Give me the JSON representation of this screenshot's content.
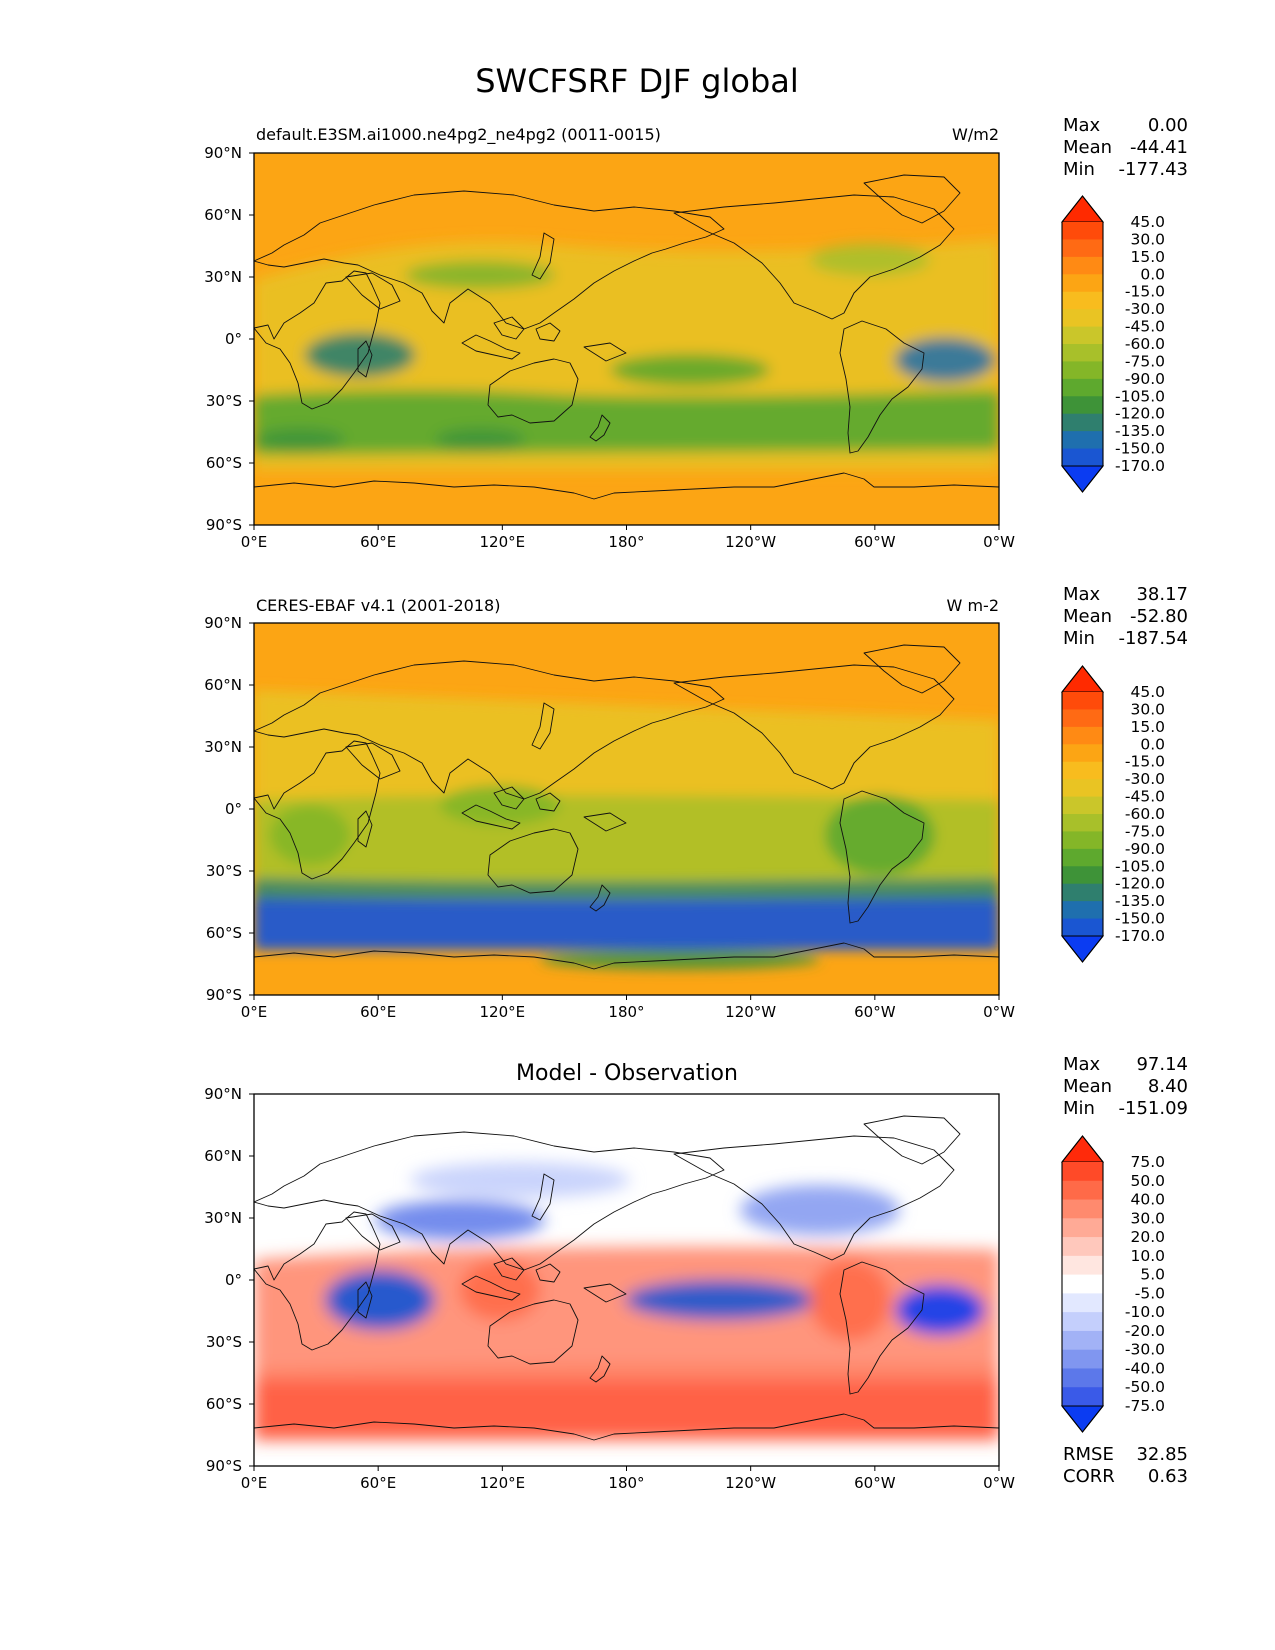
{
  "figure": {
    "title": "SWCFSRF DJF global"
  },
  "axes": {
    "lon_labels": [
      "0°E",
      "60°E",
      "120°E",
      "180°",
      "120°W",
      "60°W",
      "0°W"
    ],
    "lat_labels": [
      "90°N",
      "60°N",
      "30°N",
      "0°",
      "30°S",
      "60°S",
      "90°S"
    ]
  },
  "panels": [
    {
      "id": "model",
      "title_left": "default.E3SM.ai1000.ne4pg2_ne4pg2 (0011-0015)",
      "title_center": "",
      "units": "W/m2",
      "stats": [
        {
          "label": "Max",
          "value": "0.00"
        },
        {
          "label": "Mean",
          "value": "-44.41"
        },
        {
          "label": "Min",
          "value": "-177.43"
        }
      ],
      "colorbar": {
        "levels": [
          "45.0",
          "30.0",
          "15.0",
          "0.0",
          "-15.0",
          "-30.0",
          "-45.0",
          "-60.0",
          "-75.0",
          "-90.0",
          "-105.0",
          "-120.0",
          "-135.0",
          "-150.0",
          "-170.0"
        ],
        "colors": [
          "#ff2a00",
          "#ff4b0a",
          "#ff6a14",
          "#ff8a14",
          "#fca514",
          "#f8bc1e",
          "#e9c423",
          "#cac62a",
          "#a8c02a",
          "#84b628",
          "#5ea92e",
          "#3e9338",
          "#2f7f6e",
          "#1f6fae",
          "#1a56d2",
          "#0b3cf2"
        ],
        "extend": "both"
      },
      "overall_color": "#fca514"
    },
    {
      "id": "obs",
      "title_left": "CERES-EBAF v4.1 (2001-2018)",
      "title_center": "",
      "units": "W m-2",
      "stats": [
        {
          "label": "Max",
          "value": "38.17"
        },
        {
          "label": "Mean",
          "value": "-52.80"
        },
        {
          "label": "Min",
          "value": "-187.54"
        }
      ],
      "colorbar": {
        "levels": [
          "45.0",
          "30.0",
          "15.0",
          "0.0",
          "-15.0",
          "-30.0",
          "-45.0",
          "-60.0",
          "-75.0",
          "-90.0",
          "-105.0",
          "-120.0",
          "-135.0",
          "-150.0",
          "-170.0"
        ],
        "colors": [
          "#ff2a00",
          "#ff4b0a",
          "#ff6a14",
          "#ff8a14",
          "#fca514",
          "#f8bc1e",
          "#e9c423",
          "#cac62a",
          "#a8c02a",
          "#84b628",
          "#5ea92e",
          "#3e9338",
          "#2f7f6e",
          "#1f6fae",
          "#1a56d2",
          "#0b3cf2"
        ],
        "extend": "both"
      },
      "overall_color": "#fca514"
    },
    {
      "id": "diff",
      "title_left": "",
      "title_center": "Model - Observation",
      "units": "",
      "stats": [
        {
          "label": "Max",
          "value": "97.14"
        },
        {
          "label": "Mean",
          "value": "8.40"
        },
        {
          "label": "Min",
          "value": "-151.09"
        }
      ],
      "colorbar": {
        "levels": [
          "75.0",
          "50.0",
          "40.0",
          "30.0",
          "20.0",
          "10.0",
          "5.0",
          "-5.0",
          "-10.0",
          "-20.0",
          "-30.0",
          "-40.0",
          "-50.0",
          "-75.0"
        ],
        "colors": [
          "#ff2a0a",
          "#ff4a28",
          "#ff6a48",
          "#ff8a6e",
          "#ffaa96",
          "#ffc8bc",
          "#ffe6e0",
          "#ffffff",
          "#e2e8ff",
          "#c4cffc",
          "#a2b2f6",
          "#8096f0",
          "#5c78ea",
          "#3a5ae8",
          "#0b3cf2"
        ],
        "extend": "both"
      },
      "overall_color": "#ffffff",
      "metrics": [
        {
          "label": "RMSE",
          "value": "32.85"
        },
        {
          "label": "CORR",
          "value": "0.63"
        }
      ]
    }
  ]
}
